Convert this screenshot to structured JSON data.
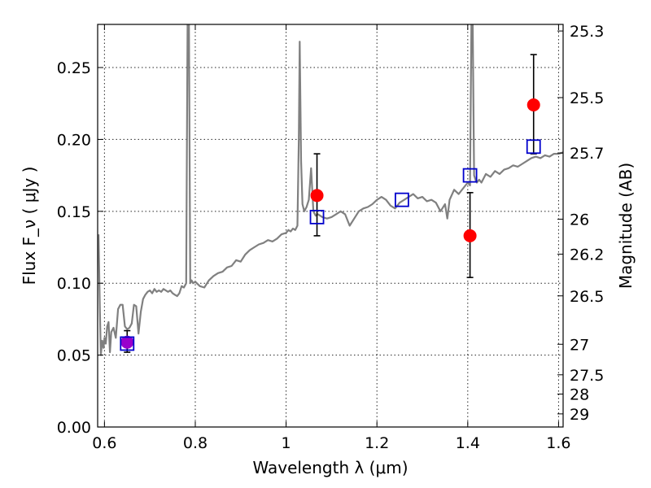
{
  "chart_data": {
    "type": "scatter",
    "xlabel": "Wavelength  λ (μm)",
    "ylabel": "Flux  F_ν  ( μJy )",
    "y2label": "Magnitude (AB)",
    "xlim": [
      0.585,
      1.61
    ],
    "ylim": [
      0.0,
      0.28
    ],
    "grid": true,
    "x_ticks": [
      0.6,
      0.8,
      1.0,
      1.2,
      1.4,
      1.6
    ],
    "x_tick_labels": [
      "0.6",
      "0.8",
      "1",
      "1.2",
      "1.4",
      "1.6"
    ],
    "y_ticks": [
      0.0,
      0.05,
      0.1,
      0.15,
      0.2,
      0.25
    ],
    "y_tick_labels": [
      "0.00",
      "0.05",
      "0.10",
      "0.15",
      "0.20",
      "0.25"
    ],
    "mag_ticks": [
      25.3,
      25.5,
      25.7,
      26,
      26.2,
      26.5,
      27,
      27.5,
      28,
      29
    ],
    "mag_tick_labels": [
      "25.3",
      "25.5",
      "25.7",
      "26",
      "26.2",
      "26.5",
      "27",
      "27.5",
      "28",
      "29"
    ],
    "colors": {
      "template": "#808080",
      "observed": "#ff0000",
      "model": "#0000cc",
      "overlap": "#9900cc",
      "errorbar": "#000000"
    },
    "template_spectrum": {
      "x": [
        0.587,
        0.59,
        0.592,
        0.595,
        0.598,
        0.6,
        0.603,
        0.606,
        0.609,
        0.612,
        0.615,
        0.62,
        0.625,
        0.63,
        0.635,
        0.64,
        0.645,
        0.65,
        0.655,
        0.66,
        0.665,
        0.67,
        0.675,
        0.68,
        0.685,
        0.69,
        0.695,
        0.7,
        0.705,
        0.71,
        0.715,
        0.72,
        0.725,
        0.73,
        0.735,
        0.74,
        0.745,
        0.75,
        0.755,
        0.76,
        0.765,
        0.77,
        0.775,
        0.78,
        0.783,
        0.786,
        0.789,
        0.792,
        0.795,
        0.8,
        0.81,
        0.82,
        0.83,
        0.84,
        0.85,
        0.86,
        0.87,
        0.88,
        0.89,
        0.9,
        0.91,
        0.92,
        0.93,
        0.94,
        0.95,
        0.96,
        0.97,
        0.98,
        0.99,
        1.0,
        1.005,
        1.01,
        1.015,
        1.02,
        1.025,
        1.028,
        1.03,
        1.033,
        1.036,
        1.04,
        1.045,
        1.05,
        1.055,
        1.06,
        1.065,
        1.07,
        1.08,
        1.09,
        1.1,
        1.11,
        1.12,
        1.13,
        1.14,
        1.15,
        1.16,
        1.17,
        1.18,
        1.19,
        1.2,
        1.21,
        1.22,
        1.23,
        1.24,
        1.25,
        1.26,
        1.27,
        1.28,
        1.29,
        1.3,
        1.31,
        1.32,
        1.33,
        1.34,
        1.35,
        1.355,
        1.36,
        1.37,
        1.38,
        1.39,
        1.4,
        1.405,
        1.408,
        1.411,
        1.414,
        1.417,
        1.42,
        1.425,
        1.43,
        1.44,
        1.45,
        1.46,
        1.47,
        1.48,
        1.49,
        1.5,
        1.51,
        1.52,
        1.53,
        1.54,
        1.55,
        1.56,
        1.57,
        1.58,
        1.59,
        1.6,
        1.61
      ],
      "y": [
        0.134,
        0.08,
        0.05,
        0.06,
        0.055,
        0.062,
        0.058,
        0.07,
        0.073,
        0.052,
        0.066,
        0.069,
        0.062,
        0.082,
        0.085,
        0.085,
        0.07,
        0.068,
        0.069,
        0.072,
        0.085,
        0.084,
        0.065,
        0.08,
        0.089,
        0.092,
        0.094,
        0.095,
        0.093,
        0.096,
        0.094,
        0.095,
        0.094,
        0.096,
        0.095,
        0.094,
        0.095,
        0.093,
        0.092,
        0.091,
        0.093,
        0.098,
        0.097,
        0.1,
        0.28,
        0.28,
        0.1,
        0.102,
        0.1,
        0.101,
        0.098,
        0.097,
        0.102,
        0.105,
        0.107,
        0.108,
        0.111,
        0.112,
        0.116,
        0.115,
        0.12,
        0.123,
        0.125,
        0.127,
        0.128,
        0.13,
        0.129,
        0.131,
        0.134,
        0.135,
        0.137,
        0.136,
        0.138,
        0.137,
        0.14,
        0.2,
        0.268,
        0.185,
        0.155,
        0.15,
        0.153,
        0.158,
        0.18,
        0.15,
        0.147,
        0.148,
        0.146,
        0.145,
        0.146,
        0.148,
        0.15,
        0.148,
        0.14,
        0.145,
        0.15,
        0.152,
        0.153,
        0.155,
        0.158,
        0.16,
        0.158,
        0.154,
        0.152,
        0.156,
        0.158,
        0.16,
        0.162,
        0.159,
        0.16,
        0.157,
        0.158,
        0.156,
        0.15,
        0.155,
        0.145,
        0.158,
        0.165,
        0.162,
        0.166,
        0.17,
        0.168,
        0.28,
        0.28,
        0.175,
        0.172,
        0.17,
        0.172,
        0.17,
        0.176,
        0.174,
        0.178,
        0.176,
        0.179,
        0.18,
        0.182,
        0.181,
        0.183,
        0.185,
        0.187,
        0.188,
        0.187,
        0.189,
        0.188,
        0.19,
        0.19,
        0.191
      ]
    },
    "observed_points": [
      {
        "x": 0.65,
        "y": 0.059,
        "yerr": [
          0.052,
          0.067
        ]
      },
      {
        "x": 1.068,
        "y": 0.161,
        "yerr": [
          0.133,
          0.19
        ]
      },
      {
        "x": 1.405,
        "y": 0.133,
        "yerr": [
          0.104,
          0.163
        ]
      },
      {
        "x": 1.545,
        "y": 0.224,
        "yerr": [
          0.19,
          0.259
        ]
      }
    ],
    "model_points": [
      {
        "x": 0.65,
        "y": 0.058
      },
      {
        "x": 1.068,
        "y": 0.146
      },
      {
        "x": 1.255,
        "y": 0.158
      },
      {
        "x": 1.405,
        "y": 0.175
      },
      {
        "x": 1.545,
        "y": 0.195
      }
    ]
  }
}
